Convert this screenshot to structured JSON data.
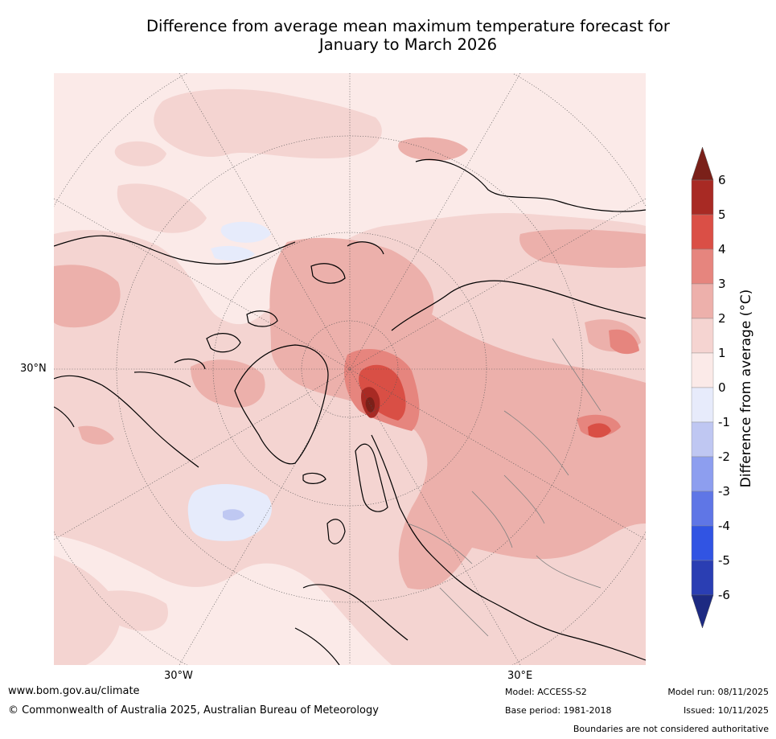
{
  "title": {
    "line1": "Difference from average mean maximum temperature forecast for",
    "line2": "January to March 2026"
  },
  "map": {
    "projection": "north polar stereographic",
    "lat_labels": [
      "30°N"
    ],
    "lon_labels": [
      "30°W",
      "30°E"
    ],
    "colors": {
      "ocean_background": "#fbeae8",
      "band_1_2": "#f4d4d1",
      "band_2_3": "#ecb0ab",
      "band_3_4": "#e6857e",
      "band_4_5": "#d94f45",
      "band_5_6": "#a82a24",
      "band_gt6": "#7b2019",
      "band_0_m1": "#e6ebfb",
      "band_m1_m2": "#bfc8f2",
      "coastline": "#000000",
      "borders": "#808080",
      "grid": "#555555"
    }
  },
  "colorbar": {
    "label": "Difference from average (°C)",
    "ticks": [
      "6",
      "5",
      "4",
      "3",
      "2",
      "1",
      "0",
      "-1",
      "-2",
      "-3",
      "-4",
      "-5",
      "-6"
    ],
    "bands": [
      {
        "range": "5 to 6",
        "color": "#a82a24"
      },
      {
        "range": "4 to 5",
        "color": "#da4f46"
      },
      {
        "range": "3 to 4",
        "color": "#e6857e"
      },
      {
        "range": "2 to 3",
        "color": "#edb0ab"
      },
      {
        "range": "1 to 2",
        "color": "#f5d4d1"
      },
      {
        "range": "0 to 1",
        "color": "#fbeae8"
      },
      {
        "range": "-1 to 0",
        "color": "#e7ebfb"
      },
      {
        "range": "-2 to -1",
        "color": "#bfc7f2"
      },
      {
        "range": "-3 to -2",
        "color": "#8d9eef"
      },
      {
        "range": "-4 to -3",
        "color": "#5f76e6"
      },
      {
        "range": "-5 to -4",
        "color": "#3154e3"
      },
      {
        "range": "-6 to -5",
        "color": "#2a3eb3"
      }
    ],
    "over_color": "#7a2019",
    "under_color": "#1d2a82"
  },
  "footer": {
    "link": "www.bom.gov.au/climate",
    "copyright": "© Commonwealth of Australia 2025, Australian Bureau of Meteorology",
    "model": "Model: ACCESS-S2",
    "base_period": "Base period: 1981-2018",
    "model_run": "Model run: 08/11/2025",
    "issued": "Issued: 10/11/2025",
    "disclaimer": "Boundaries are not considered authoritative"
  }
}
